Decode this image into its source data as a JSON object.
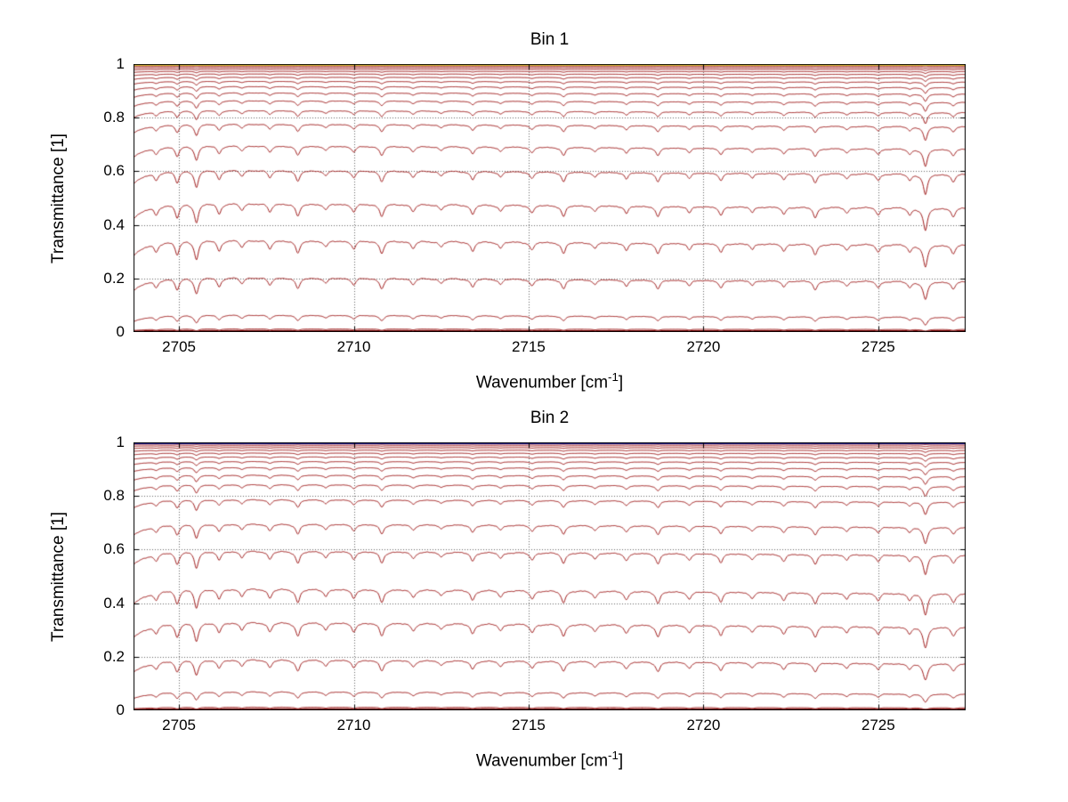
{
  "figure": {
    "background": "#ffffff"
  },
  "chart_data": [
    {
      "type": "line",
      "title": "Bin 1",
      "xlabel": {
        "prefix": "Wavenumber [cm",
        "sup": "-1",
        "suffix": "]"
      },
      "ylabel": "Transmittance [1]",
      "xlim": [
        2703.7,
        2727.5
      ],
      "ylim": [
        0,
        1
      ],
      "xticks": [
        {
          "v": 2705,
          "label": "2705"
        },
        {
          "v": 2710,
          "label": "2710"
        },
        {
          "v": 2715,
          "label": "2715"
        },
        {
          "v": 2720,
          "label": "2720"
        },
        {
          "v": 2725,
          "label": "2725"
        }
      ],
      "yticks": [
        {
          "v": 0,
          "label": "0"
        },
        {
          "v": 0.2,
          "label": "0.2"
        },
        {
          "v": 0.4,
          "label": "0.4"
        },
        {
          "v": 0.6,
          "label": "0.6"
        },
        {
          "v": 0.8,
          "label": "0.8"
        },
        {
          "v": 1,
          "label": "1"
        }
      ],
      "grid": "dotted",
      "grid_color": "#666666",
      "line_color": "#a01b1b",
      "line_half_width": 0.07,
      "noise_amplitude": 0.02,
      "noise_phase": 0,
      "slope": 0.06,
      "edge_absorption": {
        "amp": 0.18,
        "scale": 0.45
      },
      "series": [
        {
          "level": 0.9965,
          "color": "#e3c000",
          "width": 1.6,
          "flat": true
        },
        {
          "level": 0.993
        },
        {
          "level": 0.988
        },
        {
          "level": 0.982
        },
        {
          "level": 0.974
        },
        {
          "level": 0.964
        },
        {
          "level": 0.952
        },
        {
          "level": 0.937
        },
        {
          "level": 0.918
        },
        {
          "level": 0.895
        },
        {
          "level": 0.866
        },
        {
          "level": 0.83
        },
        {
          "level": 0.78
        },
        {
          "level": 0.7
        },
        {
          "level": 0.61
        },
        {
          "level": 0.487
        },
        {
          "level": 0.35
        },
        {
          "level": 0.21
        },
        {
          "level": 0.067
        },
        {
          "level": 0.013
        },
        {
          "level": 0.004,
          "color": "#780606",
          "width": 2.4
        }
      ],
      "absorption_lines": [
        {
          "x": 2704.35,
          "s": 0.1
        },
        {
          "x": 2704.95,
          "s": 0.16
        },
        {
          "x": 2705.5,
          "s": 0.22
        },
        {
          "x": 2706.15,
          "s": 0.12
        },
        {
          "x": 2706.8,
          "s": 0.08
        },
        {
          "x": 2707.6,
          "s": 0.1
        },
        {
          "x": 2708.4,
          "s": 0.15
        },
        {
          "x": 2709.2,
          "s": 0.07
        },
        {
          "x": 2710.0,
          "s": 0.09
        },
        {
          "x": 2710.8,
          "s": 0.14
        },
        {
          "x": 2711.7,
          "s": 0.08
        },
        {
          "x": 2712.5,
          "s": 0.06
        },
        {
          "x": 2713.4,
          "s": 0.11
        },
        {
          "x": 2714.2,
          "s": 0.07
        },
        {
          "x": 2715.1,
          "s": 0.09
        },
        {
          "x": 2716.0,
          "s": 0.13
        },
        {
          "x": 2716.9,
          "s": 0.07
        },
        {
          "x": 2717.8,
          "s": 0.09
        },
        {
          "x": 2718.7,
          "s": 0.13
        },
        {
          "x": 2719.6,
          "s": 0.08
        },
        {
          "x": 2720.5,
          "s": 0.11
        },
        {
          "x": 2721.4,
          "s": 0.07
        },
        {
          "x": 2722.3,
          "s": 0.09
        },
        {
          "x": 2723.2,
          "s": 0.13
        },
        {
          "x": 2724.1,
          "s": 0.07
        },
        {
          "x": 2725.0,
          "s": 0.09
        },
        {
          "x": 2725.9,
          "s": 0.08
        },
        {
          "x": 2726.35,
          "s": 0.28
        },
        {
          "x": 2727.15,
          "s": 0.1
        }
      ]
    },
    {
      "type": "line",
      "title": "Bin 2",
      "xlabel": {
        "prefix": "Wavenumber [cm",
        "sup": "-1",
        "suffix": "]"
      },
      "ylabel": "Transmittance [1]",
      "xlim": [
        2703.7,
        2727.5
      ],
      "ylim": [
        0,
        1
      ],
      "xticks": [
        {
          "v": 2705,
          "label": "2705"
        },
        {
          "v": 2710,
          "label": "2710"
        },
        {
          "v": 2715,
          "label": "2715"
        },
        {
          "v": 2720,
          "label": "2720"
        },
        {
          "v": 2725,
          "label": "2725"
        }
      ],
      "yticks": [
        {
          "v": 0,
          "label": "0"
        },
        {
          "v": 0.2,
          "label": "0.2"
        },
        {
          "v": 0.4,
          "label": "0.4"
        },
        {
          "v": 0.6,
          "label": "0.6"
        },
        {
          "v": 0.8,
          "label": "0.8"
        },
        {
          "v": 1,
          "label": "1"
        }
      ],
      "grid": "dotted",
      "grid_color": "#666666",
      "line_color": "#a01b1b",
      "line_half_width": 0.07,
      "noise_amplitude": 0.02,
      "noise_phase": 4,
      "slope": 0.06,
      "edge_absorption": {
        "amp": 0.18,
        "scale": 0.45
      },
      "series": [
        {
          "level": 0.9965,
          "color": "#16168e",
          "width": 1.8,
          "flat": true
        },
        {
          "level": 0.994
        },
        {
          "level": 0.988
        },
        {
          "level": 0.981
        },
        {
          "level": 0.972
        },
        {
          "level": 0.961
        },
        {
          "level": 0.947
        },
        {
          "level": 0.93
        },
        {
          "level": 0.908
        },
        {
          "level": 0.88
        },
        {
          "level": 0.845
        },
        {
          "level": 0.79
        },
        {
          "level": 0.7
        },
        {
          "level": 0.6
        },
        {
          "level": 0.46
        },
        {
          "level": 0.335
        },
        {
          "level": 0.195
        },
        {
          "level": 0.073
        },
        {
          "level": 0.013
        },
        {
          "level": 0.004,
          "color": "#780606",
          "width": 2.4
        }
      ],
      "absorption_lines": [
        {
          "x": 2704.35,
          "s": 0.1
        },
        {
          "x": 2704.95,
          "s": 0.16
        },
        {
          "x": 2705.5,
          "s": 0.22
        },
        {
          "x": 2706.15,
          "s": 0.12
        },
        {
          "x": 2706.8,
          "s": 0.08
        },
        {
          "x": 2707.6,
          "s": 0.1
        },
        {
          "x": 2708.4,
          "s": 0.15
        },
        {
          "x": 2709.2,
          "s": 0.07
        },
        {
          "x": 2710.0,
          "s": 0.09
        },
        {
          "x": 2710.8,
          "s": 0.14
        },
        {
          "x": 2711.7,
          "s": 0.08
        },
        {
          "x": 2712.5,
          "s": 0.06
        },
        {
          "x": 2713.4,
          "s": 0.11
        },
        {
          "x": 2714.2,
          "s": 0.07
        },
        {
          "x": 2715.1,
          "s": 0.09
        },
        {
          "x": 2716.0,
          "s": 0.13
        },
        {
          "x": 2716.9,
          "s": 0.07
        },
        {
          "x": 2717.8,
          "s": 0.09
        },
        {
          "x": 2718.7,
          "s": 0.13
        },
        {
          "x": 2719.6,
          "s": 0.08
        },
        {
          "x": 2720.5,
          "s": 0.11
        },
        {
          "x": 2721.4,
          "s": 0.07
        },
        {
          "x": 2722.3,
          "s": 0.09
        },
        {
          "x": 2723.2,
          "s": 0.13
        },
        {
          "x": 2724.1,
          "s": 0.07
        },
        {
          "x": 2725.0,
          "s": 0.09
        },
        {
          "x": 2725.9,
          "s": 0.08
        },
        {
          "x": 2726.35,
          "s": 0.26
        },
        {
          "x": 2727.15,
          "s": 0.1
        }
      ]
    }
  ]
}
